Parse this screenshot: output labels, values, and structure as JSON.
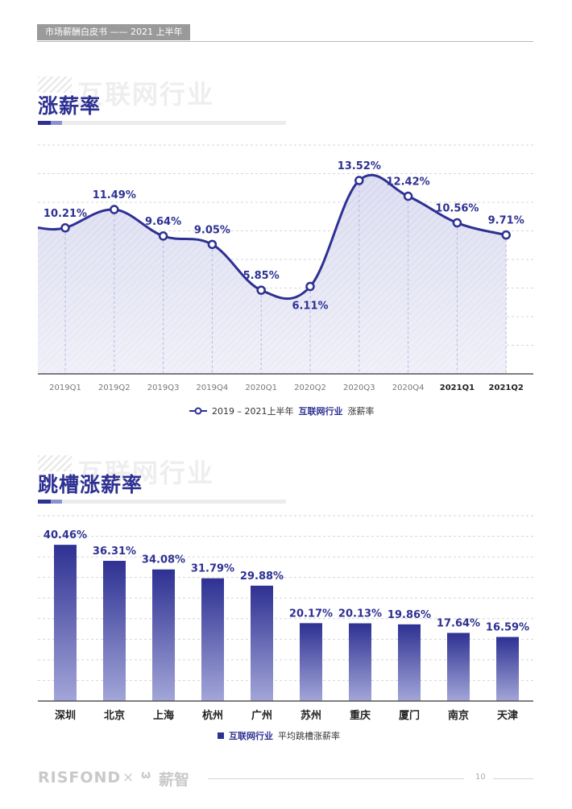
{
  "header": {
    "tag": "市场薪酬白皮书 —— 2021 上半年"
  },
  "section1": {
    "title": "涨薪率",
    "watermark": "互联网行业",
    "legend": {
      "text": "2019 – 2021上半年",
      "highlight": "互联网行业",
      "suffix": "涨薪率"
    }
  },
  "section2": {
    "title": "跳槽涨薪率",
    "watermark": "互联网行业",
    "legend": {
      "highlight": "互联网行业",
      "suffix": "平均跳槽涨薪率"
    }
  },
  "colors": {
    "accent": "#2e3192",
    "accent_light": "#8c8fd0",
    "area_fill": "#dcdcf0",
    "bar_top": "#2e3192",
    "bar_bottom": "#a3a6d8"
  },
  "chart_data": [
    {
      "type": "line",
      "categories": [
        "2019Q1",
        "2019Q2",
        "2019Q3",
        "2019Q4",
        "2020Q1",
        "2020Q2",
        "2020Q3",
        "2020Q4",
        "2021Q1",
        "2021Q2"
      ],
      "bold_categories": [
        "2021Q1",
        "2021Q2"
      ],
      "values": [
        10.21,
        11.49,
        9.64,
        9.05,
        5.85,
        6.11,
        13.52,
        12.42,
        10.56,
        9.71
      ],
      "labels": [
        "10.21%",
        "11.49%",
        "9.64%",
        "9.05%",
        "5.85%",
        "6.11%",
        "13.52%",
        "12.42%",
        "10.56%",
        "9.71%"
      ],
      "ylim": [
        0,
        16
      ],
      "grid": true,
      "legend_position": "bottom-center"
    },
    {
      "type": "bar",
      "categories": [
        "深圳",
        "北京",
        "上海",
        "杭州",
        "广州",
        "苏州",
        "重庆",
        "厦门",
        "南京",
        "天津"
      ],
      "values": [
        40.46,
        36.31,
        34.08,
        31.79,
        29.88,
        20.17,
        20.13,
        19.86,
        17.64,
        16.59
      ],
      "labels": [
        "40.46%",
        "36.31%",
        "34.08%",
        "31.79%",
        "29.88%",
        "20.17%",
        "20.13%",
        "19.86%",
        "17.64%",
        "16.59%"
      ],
      "ylim": [
        0,
        48
      ],
      "grid": true,
      "legend_position": "bottom-center"
    }
  ],
  "footer": {
    "logo": "RISFOND",
    "times": "×",
    "icon": "ѡ",
    "brand": "薪智",
    "page": "10"
  }
}
